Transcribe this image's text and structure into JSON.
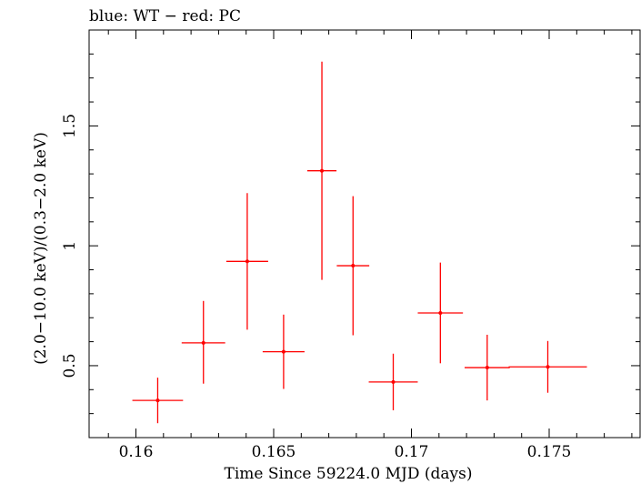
{
  "header": {
    "label": "blue: WT − red: PC"
  },
  "colors": {
    "pc": "#ff0000",
    "frame": "#000000",
    "background": "#ffffff"
  },
  "chart_data": {
    "type": "scatter",
    "title": "blue: WT − red: PC",
    "xlabel": "Time Since 59224.0 MJD (days)",
    "ylabel": "(2.0−10.0 keV)/(0.3−2.0 keV)",
    "xlim": [
      0.1583,
      0.1783
    ],
    "ylim": [
      0.2,
      1.9
    ],
    "x_ticks": [
      0.16,
      0.165,
      0.17,
      0.175
    ],
    "x_tick_labels": [
      "0.16",
      "0.165",
      "0.17",
      "0.175"
    ],
    "y_ticks": [
      0.5,
      1.0,
      1.5
    ],
    "y_tick_labels": [
      "0.5",
      "1",
      "1.5"
    ],
    "grid": false,
    "series": [
      {
        "color": "#ff0000",
        "points": [
          {
            "x": 0.16079,
            "xerr_lo": 0.00092,
            "xerr_hi": 0.00092,
            "y": 0.355,
            "yerr_lo": 0.095,
            "yerr_hi": 0.095
          },
          {
            "x": 0.16245,
            "xerr_lo": 0.00079,
            "xerr_hi": 0.00079,
            "y": 0.595,
            "yerr_lo": 0.17,
            "yerr_hi": 0.175
          },
          {
            "x": 0.16404,
            "xerr_lo": 0.00076,
            "xerr_hi": 0.00076,
            "y": 0.935,
            "yerr_lo": 0.285,
            "yerr_hi": 0.285
          },
          {
            "x": 0.16536,
            "xerr_lo": 0.00076,
            "xerr_hi": 0.00076,
            "y": 0.558,
            "yerr_lo": 0.155,
            "yerr_hi": 0.155
          },
          {
            "x": 0.16675,
            "xerr_lo": 0.00053,
            "xerr_hi": 0.00053,
            "y": 1.313,
            "yerr_lo": 0.455,
            "yerr_hi": 0.455
          },
          {
            "x": 0.16788,
            "xerr_lo": 0.00059,
            "xerr_hi": 0.00059,
            "y": 0.917,
            "yerr_lo": 0.29,
            "yerr_hi": 0.29
          },
          {
            "x": 0.16934,
            "xerr_lo": 0.00089,
            "xerr_hi": 0.00089,
            "y": 0.432,
            "yerr_lo": 0.118,
            "yerr_hi": 0.118
          },
          {
            "x": 0.17105,
            "xerr_lo": 0.00082,
            "xerr_hi": 0.00082,
            "y": 0.72,
            "yerr_lo": 0.21,
            "yerr_hi": 0.21
          },
          {
            "x": 0.17275,
            "xerr_lo": 0.00082,
            "xerr_hi": 0.00082,
            "y": 0.492,
            "yerr_lo": 0.137,
            "yerr_hi": 0.137
          },
          {
            "x": 0.17495,
            "xerr_lo": 0.00142,
            "xerr_hi": 0.00142,
            "y": 0.495,
            "yerr_lo": 0.108,
            "yerr_hi": 0.108
          }
        ]
      }
    ]
  }
}
